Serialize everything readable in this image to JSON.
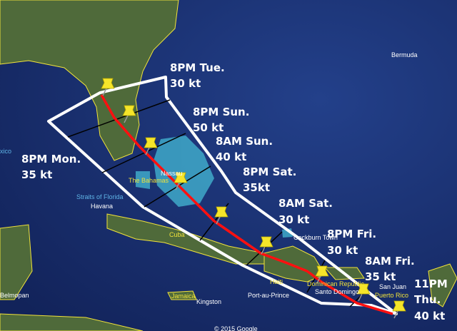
{
  "map": {
    "colors": {
      "ocean": "#1a2d6b",
      "land": "#4f6a3a",
      "border": "#f2e33a",
      "shallow": "#3fa9c9",
      "cone": "#ffffff",
      "track": "#ff0000",
      "pin": "#f5e52a"
    },
    "places": {
      "bermuda": "Bermuda",
      "nassau": "Nassau",
      "bahamas": "The Bahamas",
      "straits": "Straits of Florida",
      "havana": "Havana",
      "cuba": "Cuba",
      "jamaica": "Jamaica",
      "kingston": "Kingston",
      "belmopan": "Belmopan",
      "haiti": "Haiti",
      "port_au_prince": "Port-au-Prince",
      "dominican": "Dominican Republic",
      "santo_domingo": "Santo Domingo",
      "san_juan": "San Juan",
      "puerto_rico": "Puerto Rico",
      "cockburn": "Cockburn Town",
      "mexico": "xico"
    },
    "copyright": "© 2015 Google"
  },
  "forecast": [
    {
      "time": "8PM Tue.",
      "wind": "30 kt"
    },
    {
      "time": "8PM Sun.",
      "wind": "50 kt"
    },
    {
      "time": "8AM Sun.",
      "wind": "40 kt"
    },
    {
      "time": "8PM Mon.",
      "wind": "35 kt"
    },
    {
      "time": "8PM Sat.",
      "wind": "35kt"
    },
    {
      "time": "8AM Sat.",
      "wind": "30 kt"
    },
    {
      "time": "8PM Fri.",
      "wind": "30 kt"
    },
    {
      "time": "8AM Fri.",
      "wind": "35 kt"
    },
    {
      "time": "11PM",
      "time2": "Thu.",
      "wind": "40 kt"
    }
  ]
}
